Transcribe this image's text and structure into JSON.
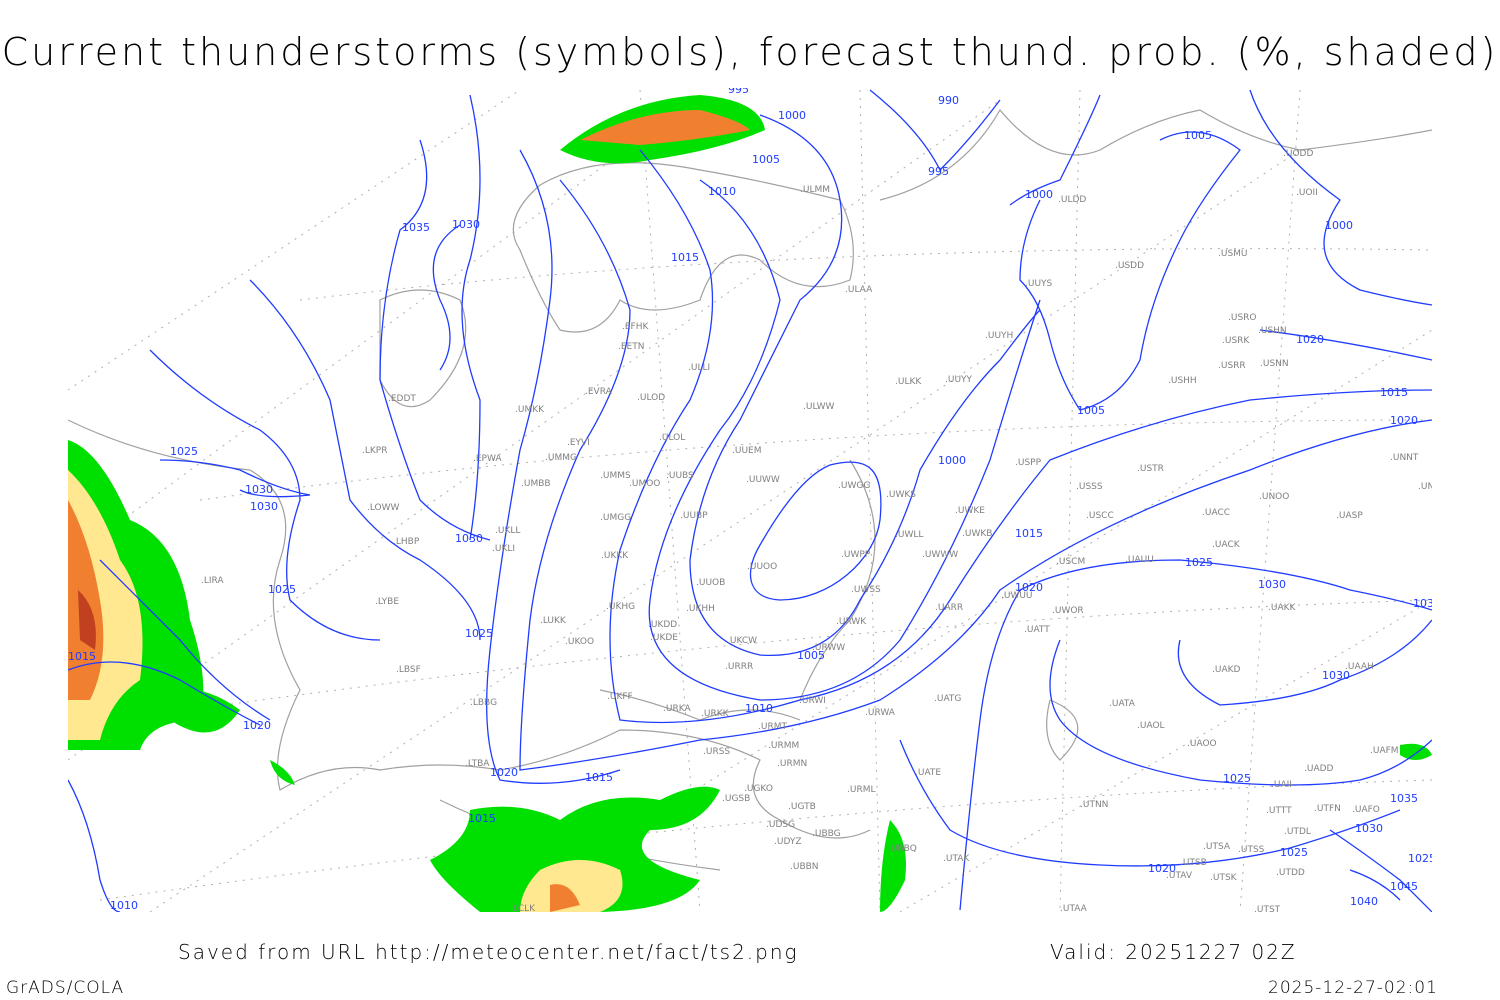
{
  "title": "Current thunderstorms (symbols), forecast thund. prob. (%, shaded)",
  "footer": {
    "source": "Saved from URL http://meteocenter.net/fact/ts2.png",
    "valid": "Valid: 20251227 02Z",
    "software": "GrADS/COLA",
    "timestamp": "2025-12-27-02:01"
  },
  "colors": {
    "isobar": "#1f3cff",
    "coast": "#a0a0a0",
    "prob_low": "#00e000",
    "prob_mid": "#ffe890",
    "prob_high": "#f08030",
    "prob_max": "#c04020"
  },
  "isobar_labels": [
    "995",
    "990",
    "1000",
    "1005",
    "1010",
    "1015",
    "1035",
    "1030",
    "1000",
    "995",
    "1005",
    "1000",
    "1025",
    "1030",
    "1030",
    "1030",
    "1025",
    "1025",
    "1015",
    "1020",
    "1020",
    "1015",
    "1015",
    "1020",
    "1025",
    "1030",
    "1030",
    "1025",
    "1010",
    "1005",
    "1015",
    "1020",
    "1015",
    "1025",
    "1035",
    "1030",
    "1025",
    "1045",
    "1040",
    "1020",
    "1005",
    "1000",
    "1030",
    "1020",
    "1010"
  ],
  "stations": [
    "ULMM",
    "ULDD",
    "UODD",
    "UOII",
    "USMU",
    "USDD",
    "UUYS",
    "ULAA",
    "USRO",
    "USRK",
    "USHN",
    "USRR",
    "USNN",
    "UUYH",
    "USHH",
    "ULKK",
    "UUYY",
    "ULWW",
    "EFHK",
    "EETN",
    "ULLI",
    "EVRA",
    "ULOD",
    "UMKK",
    "EDDT",
    "EYVI",
    "ULOL",
    "UUEM",
    "LKPR",
    "EPWA",
    "UMMG",
    "UMMS",
    "UUBS",
    "UUWW",
    "UWGG",
    "UWKS",
    "USPP",
    "USTR",
    "USSS",
    "UNOO",
    "UNNT",
    "UNBB",
    "UMBB",
    "UMOO",
    "LOWW",
    "UMGG",
    "UUBP",
    "UWKE",
    "USCC",
    "UACC",
    "UKLL",
    "UKLI",
    "LHBP",
    "UWLL",
    "UWKB",
    "USCM",
    "UASP",
    "UACK",
    "UKKK",
    "UWWW",
    "UWPP",
    "UUOO",
    "UAUU",
    "LIRA",
    "LYBE",
    "UUOB",
    "UWSS",
    "UWUU",
    "UWOR",
    "UARR",
    "UAKK",
    "LUKK",
    "UKHH",
    "UKDD",
    "UKHG",
    "UKDE",
    "URWK",
    "UATT",
    "UKOO",
    "UKCW",
    "URWW",
    "LBSF",
    "URRR",
    "UAKD",
    "UAAH",
    "UKFF",
    "LBBG",
    "URWI",
    "UATG",
    "UATA",
    "URKA",
    "URKK",
    "URMT",
    "URWA",
    "UAOL",
    "LTBA",
    "URSS",
    "URMM",
    "UAOO",
    "UAFM",
    "URMN",
    "UATE",
    "UADD",
    "UGKO",
    "URML",
    "UAII",
    "UGSB",
    "UGTB",
    "UAFO",
    "UTNN",
    "UTTT",
    "UTFN",
    "UDSG",
    "UTDL",
    "UBBG",
    "UDYZ",
    "UBBQ",
    "UTAK",
    "UTSA",
    "UTSS",
    "UTSB",
    "UBBN",
    "UTAV",
    "UTSK",
    "UTDD",
    "UTST",
    "UTAA",
    "LCLK"
  ]
}
